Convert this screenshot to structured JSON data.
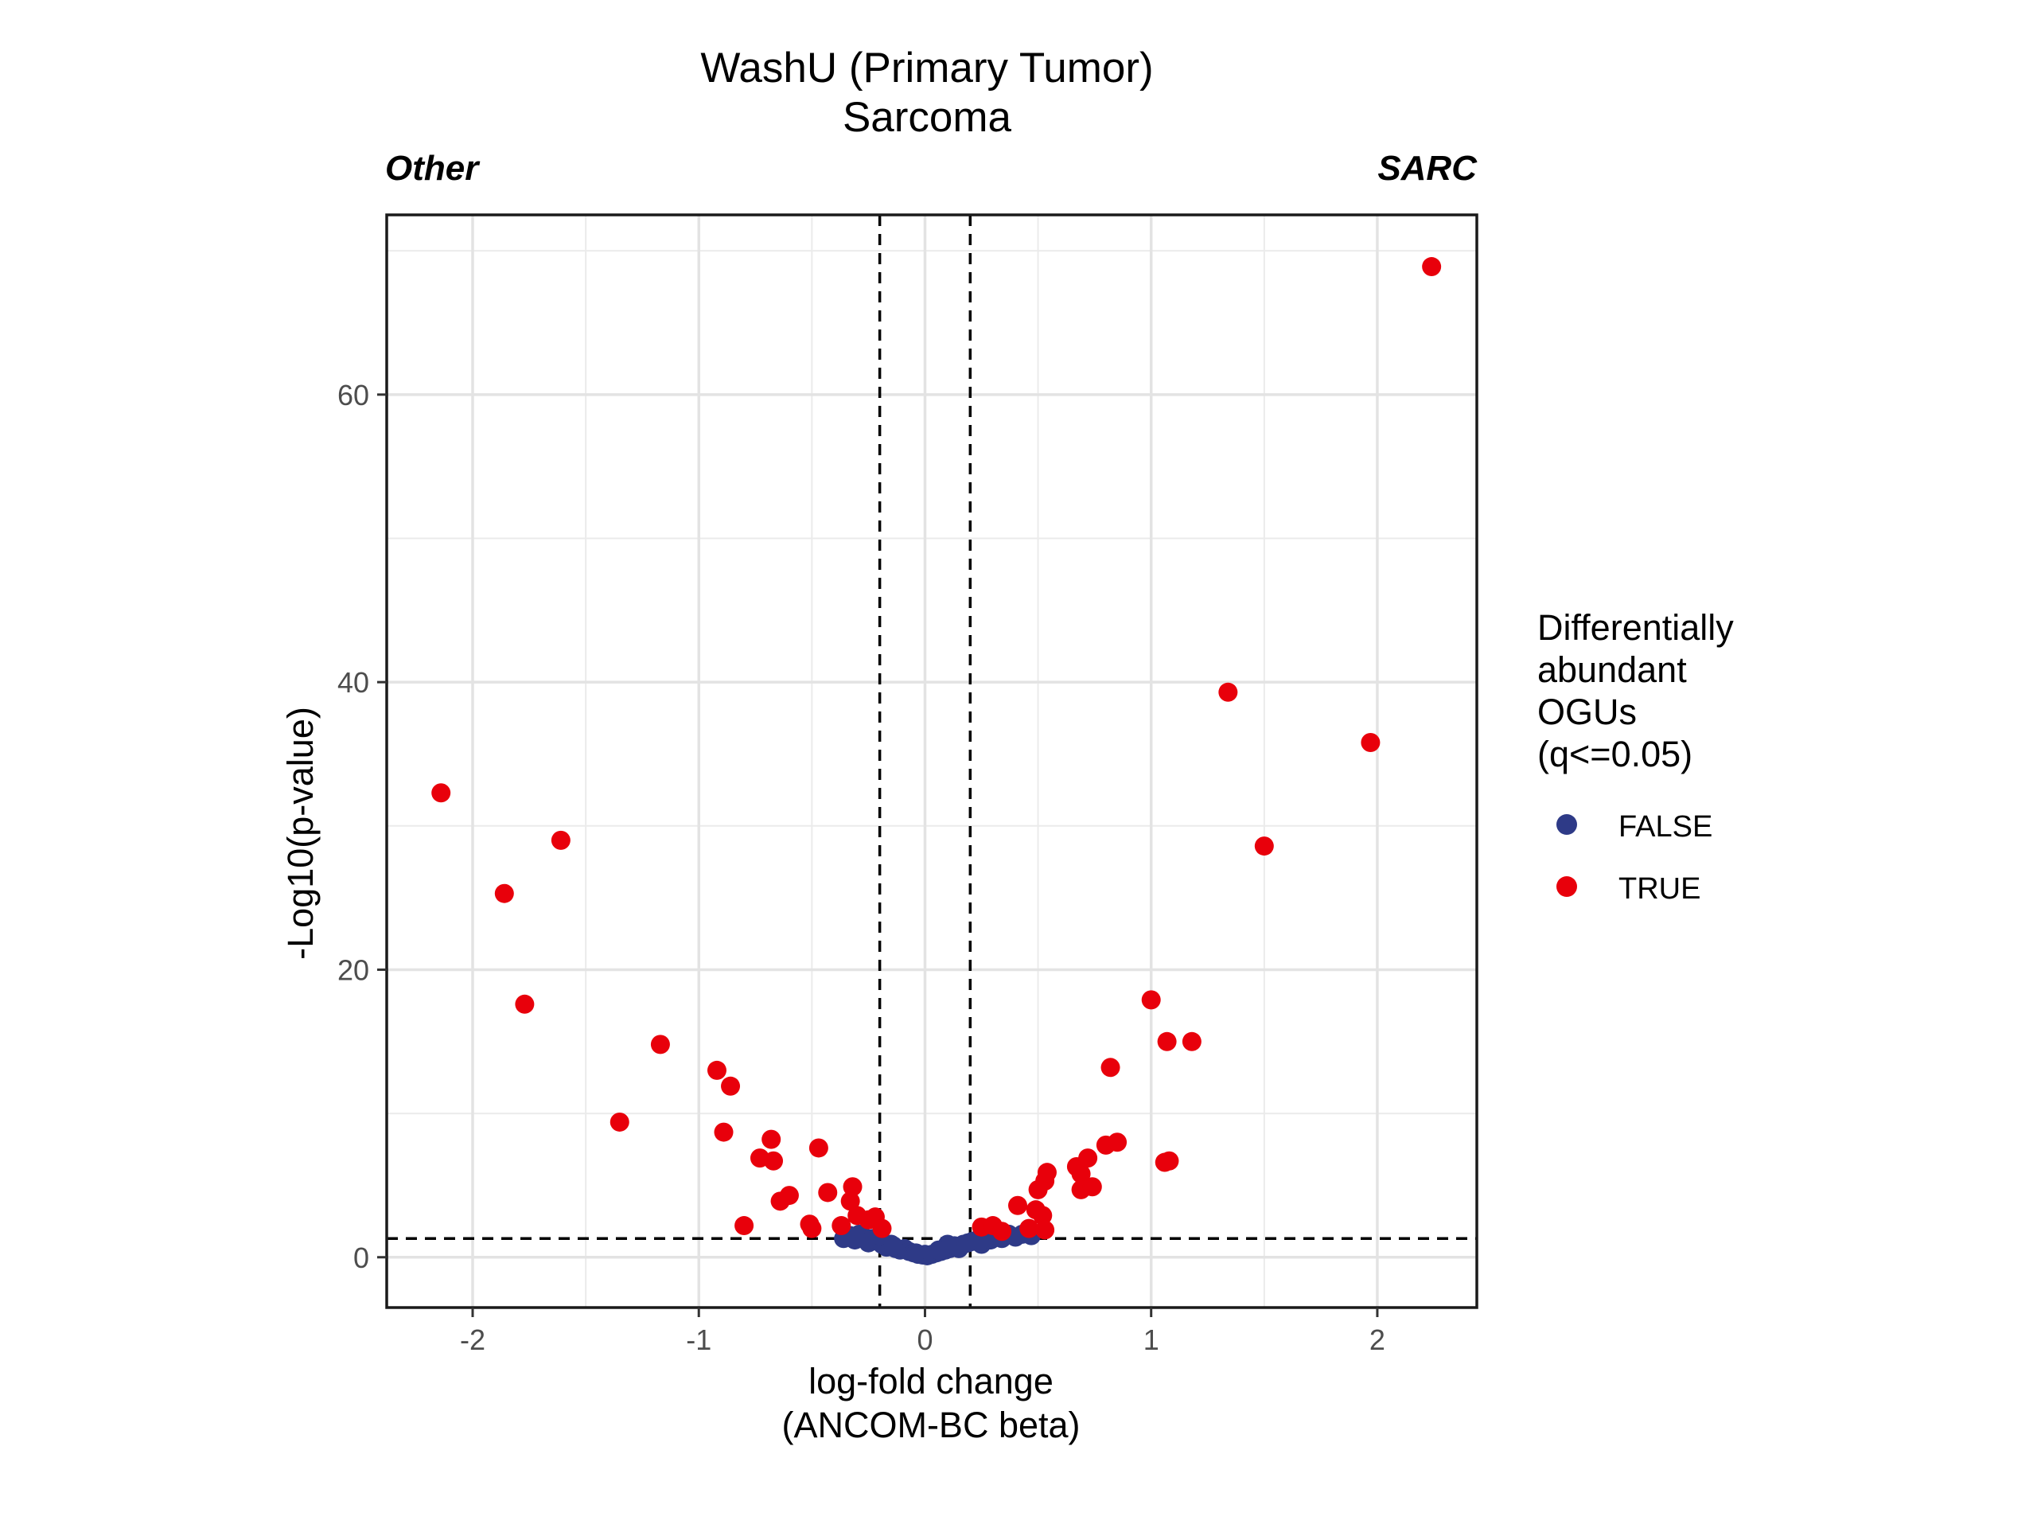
{
  "chart_data": {
    "type": "scatter",
    "title": "WashU (Primary Tumor)",
    "subtitle": "Sarcoma",
    "left_annotation": "Other",
    "right_annotation": "SARC",
    "xlabel_line1": "log-fold change",
    "xlabel_line2": "(ANCOM-BC beta)",
    "ylabel": "-Log10(p-value)",
    "xlim": [
      -2.38,
      2.44
    ],
    "ylim": [
      -3.5,
      72.5
    ],
    "x_ticks": [
      -2,
      -1,
      0,
      1,
      2
    ],
    "x_tick_labels": [
      "-2",
      "-1",
      "0",
      "1",
      "2"
    ],
    "y_ticks": [
      0,
      20,
      40,
      60
    ],
    "y_tick_labels": [
      "0",
      "20",
      "40",
      "60"
    ],
    "x_minor": [
      -1.5,
      -0.5,
      0.5,
      1.5
    ],
    "y_minor": [
      10,
      30,
      50,
      70
    ],
    "grid": true,
    "reference_lines": {
      "vertical": [
        -0.2,
        0.2
      ],
      "horizontal": 1.3
    },
    "legend": {
      "title_lines": [
        "Differentially",
        "abundant",
        "OGUs",
        "(q<=0.05)"
      ],
      "position": "right"
    },
    "series": [
      {
        "name": "FALSE",
        "color": "#2e3a87",
        "points": [
          [
            -0.36,
            1.3
          ],
          [
            -0.33,
            1.5
          ],
          [
            -0.31,
            1.2
          ],
          [
            -0.29,
            1.6
          ],
          [
            -0.27,
            1.4
          ],
          [
            -0.25,
            1.0
          ],
          [
            -0.23,
            1.3
          ],
          [
            -0.21,
            1.2
          ],
          [
            -0.19,
            0.9
          ],
          [
            -0.17,
            0.7
          ],
          [
            -0.15,
            0.9
          ],
          [
            -0.13,
            0.6
          ],
          [
            -0.11,
            0.5
          ],
          [
            -0.09,
            0.6
          ],
          [
            -0.07,
            0.4
          ],
          [
            -0.05,
            0.3
          ],
          [
            -0.03,
            0.2
          ],
          [
            -0.01,
            0.15
          ],
          [
            0.01,
            0.1
          ],
          [
            0.03,
            0.2
          ],
          [
            0.05,
            0.3
          ],
          [
            0.07,
            0.4
          ],
          [
            0.09,
            0.5
          ],
          [
            0.11,
            0.6
          ],
          [
            0.13,
            0.8
          ],
          [
            0.15,
            0.6
          ],
          [
            0.17,
            0.9
          ],
          [
            0.19,
            1.0
          ],
          [
            0.21,
            1.1
          ],
          [
            0.23,
            1.2
          ],
          [
            0.25,
            0.9
          ],
          [
            0.27,
            1.4
          ],
          [
            0.29,
            1.2
          ],
          [
            0.31,
            1.5
          ],
          [
            0.34,
            1.3
          ],
          [
            0.37,
            1.6
          ],
          [
            0.4,
            1.4
          ],
          [
            0.43,
            1.6
          ],
          [
            0.47,
            1.5
          ],
          [
            -0.2,
            1.5
          ],
          [
            -0.14,
            0.8
          ],
          [
            0.1,
            0.9
          ],
          [
            0.0,
            0.2
          ],
          [
            -0.04,
            0.3
          ],
          [
            0.06,
            0.5
          ]
        ]
      },
      {
        "name": "TRUE",
        "color": "#e8000b",
        "points": [
          [
            -2.14,
            32.3
          ],
          [
            -1.86,
            25.3
          ],
          [
            -1.77,
            17.6
          ],
          [
            -1.61,
            29.0
          ],
          [
            -1.35,
            9.4
          ],
          [
            -1.17,
            14.8
          ],
          [
            -0.92,
            13.0
          ],
          [
            -0.89,
            8.7
          ],
          [
            -0.86,
            11.9
          ],
          [
            -0.8,
            2.2
          ],
          [
            -0.73,
            6.9
          ],
          [
            -0.68,
            8.2
          ],
          [
            -0.67,
            6.7
          ],
          [
            -0.64,
            3.9
          ],
          [
            -0.6,
            4.3
          ],
          [
            -0.51,
            2.3
          ],
          [
            -0.5,
            2.0
          ],
          [
            -0.47,
            7.6
          ],
          [
            -0.43,
            4.5
          ],
          [
            -0.37,
            2.2
          ],
          [
            -0.33,
            3.9
          ],
          [
            -0.32,
            4.9
          ],
          [
            -0.3,
            2.9
          ],
          [
            -0.25,
            2.6
          ],
          [
            -0.22,
            2.8
          ],
          [
            -0.19,
            2.0
          ],
          [
            0.25,
            2.1
          ],
          [
            0.3,
            2.2
          ],
          [
            0.34,
            1.8
          ],
          [
            0.41,
            3.6
          ],
          [
            0.46,
            2.0
          ],
          [
            0.49,
            3.3
          ],
          [
            0.5,
            4.7
          ],
          [
            0.52,
            2.9
          ],
          [
            0.53,
            5.3
          ],
          [
            0.54,
            5.9
          ],
          [
            0.53,
            1.9
          ],
          [
            0.67,
            6.3
          ],
          [
            0.69,
            5.8
          ],
          [
            0.69,
            4.7
          ],
          [
            0.72,
            6.9
          ],
          [
            0.74,
            4.9
          ],
          [
            0.8,
            7.8
          ],
          [
            0.82,
            13.2
          ],
          [
            0.85,
            8.0
          ],
          [
            1.0,
            17.9
          ],
          [
            1.06,
            6.6
          ],
          [
            1.07,
            15.0
          ],
          [
            1.08,
            6.7
          ],
          [
            1.18,
            15.0
          ],
          [
            1.34,
            39.3
          ],
          [
            1.5,
            28.6
          ],
          [
            1.97,
            35.8
          ],
          [
            2.24,
            68.9
          ]
        ]
      }
    ]
  }
}
